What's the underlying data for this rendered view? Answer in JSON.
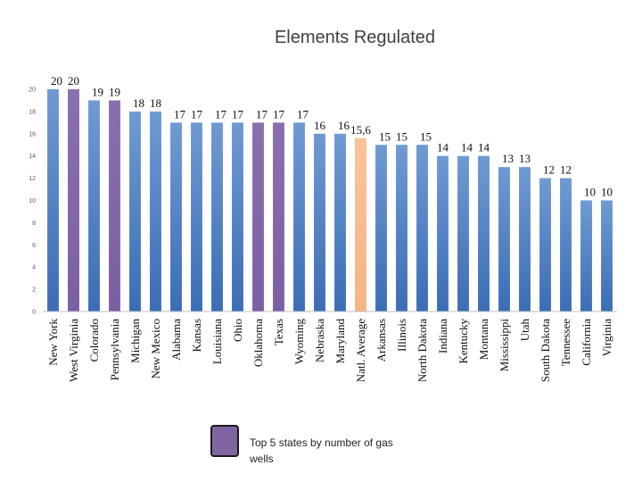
{
  "chart_data": {
    "type": "bar",
    "title": "Elements Regulated",
    "xlabel": "",
    "ylabel": "",
    "ylim": [
      0,
      20
    ],
    "yticks": [
      0,
      2,
      4,
      6,
      8,
      10,
      12,
      14,
      16,
      18,
      20
    ],
    "grid": false,
    "categories": [
      "New York",
      "West Virginia",
      "Colorado",
      "Pennsylvania",
      "Michigan",
      "New Mexico",
      "Alabama",
      "Kansas",
      "Louisiana",
      "Ohio",
      "Oklahoma",
      "Texas",
      "Wyoming",
      "Nebraska",
      "Maryland",
      "Natl. Average",
      "Arkansas",
      "Illinois",
      "North Dakota",
      "Indiana",
      "Kentucky",
      "Montana",
      "Mississippi",
      "Utah",
      "South Dakota",
      "Tennessee",
      "California",
      "Virginia"
    ],
    "values": [
      20,
      20,
      19,
      19,
      18,
      18,
      17,
      17,
      17,
      17,
      17,
      17,
      17,
      16,
      16,
      15.6,
      15,
      15,
      15,
      14,
      14,
      14,
      13,
      13,
      12,
      12,
      10,
      10
    ],
    "data_labels": [
      "20",
      "20",
      "19",
      "19",
      "18",
      "18",
      "17",
      "17",
      "17",
      "17",
      "17",
      "17",
      "17",
      "16",
      "16",
      "15,6",
      "15",
      "15",
      "15",
      "14",
      "14",
      "14",
      "13",
      "13",
      "12",
      "12",
      "10",
      "10"
    ],
    "highlight": [
      "none",
      "top5",
      "none",
      "top5",
      "none",
      "none",
      "none",
      "none",
      "none",
      "none",
      "top5",
      "top5",
      "none",
      "none",
      "none",
      "average",
      "none",
      "none",
      "none",
      "none",
      "none",
      "none",
      "none",
      "none",
      "none",
      "none",
      "none",
      "none"
    ],
    "colors": {
      "default": "#4f81bd",
      "top5": "#8064a2",
      "average": "#f9bf8f"
    },
    "legend": {
      "label": "Top 5 states by number of gas wells",
      "color": "#8064a2",
      "position": "bottom-center"
    }
  }
}
